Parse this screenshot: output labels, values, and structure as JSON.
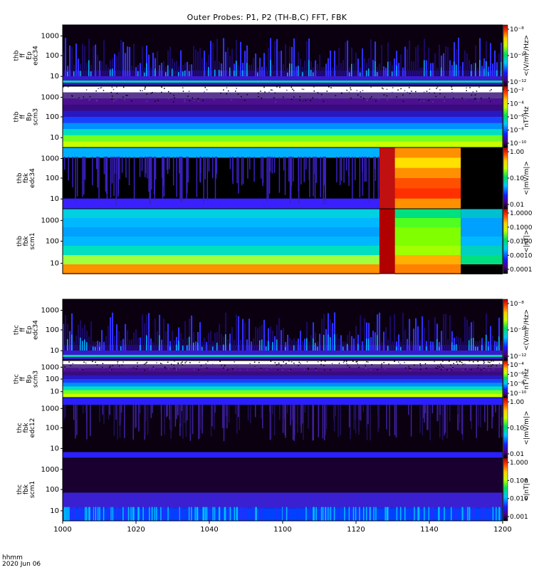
{
  "title": "Outer Probes: P1, P2 (TH-B,C) FFT, FBK",
  "footer": {
    "format": "hhmm",
    "date": "2020 Jun 06"
  },
  "chart_data": {
    "type": "heatmap",
    "x_axis": {
      "ticks": [
        "1000",
        "1020",
        "1040",
        "1100",
        "1120",
        "1140",
        "1200"
      ],
      "range": [
        "10:00",
        "12:00"
      ]
    },
    "panels": [
      {
        "id": "thb-ff-ep-edc34",
        "label": [
          "thb",
          "ff",
          "Ep",
          "edc34"
        ],
        "y_ticks": [
          "1000",
          "100",
          "10"
        ],
        "y_scale": "log",
        "cbar_unit": "<(V/m)²/Hz>",
        "cbar_ticks": [
          "10⁻⁸",
          "10⁻¹⁰",
          "10⁻¹²"
        ],
        "cbar_range": [
          "1e-13",
          "1e-7"
        ],
        "style": "spiky"
      },
      {
        "id": "thb-ff-bp-scm3",
        "label": [
          "thb",
          "ff",
          "Bp",
          "scm3"
        ],
        "y_ticks": [
          "1000",
          "100",
          "10"
        ],
        "y_scale": "log",
        "cbar_unit": "nT²/Hz",
        "cbar_ticks": [
          "10⁻²",
          "10⁻⁴",
          "10⁻⁶",
          "10⁻⁸",
          "10⁻¹⁰"
        ],
        "cbar_range": [
          "1e-10",
          "1e-2"
        ],
        "style": "bands"
      },
      {
        "id": "thb-fbk-edc34",
        "label": [
          "thb",
          "fbk",
          "edc34"
        ],
        "y_ticks": [
          "1000",
          "100",
          "10"
        ],
        "y_scale": "log",
        "cbar_unit": "<|mV/m|>",
        "cbar_ticks": [
          "1.00",
          "0.10",
          "0.01"
        ],
        "cbar_range": [
          "0.005",
          "2"
        ],
        "style": "fbk-e"
      },
      {
        "id": "thb-fbk-scm1",
        "label": [
          "thb",
          "fbk",
          "scm1"
        ],
        "y_ticks": [
          "1000",
          "100",
          "10"
        ],
        "y_scale": "log",
        "cbar_unit": "<|nT|>",
        "cbar_ticks": [
          "1.0000",
          "0.1000",
          "0.0100",
          "0.0010",
          "0.0001"
        ],
        "cbar_range": [
          "0.00005",
          "2"
        ],
        "style": "fbk-b"
      },
      {
        "id": "thc-ff-ep-edc34",
        "label": [
          "thc",
          "ff",
          "Ep",
          "edc34"
        ],
        "y_ticks": [
          "1000",
          "100",
          "10"
        ],
        "y_scale": "log",
        "cbar_unit": "<(V/m)²/Hz>",
        "cbar_ticks": [
          "10⁻⁸",
          "10⁻¹⁰",
          "10⁻¹²"
        ],
        "cbar_range": [
          "1e-13",
          "1e-7"
        ],
        "style": "spiky"
      },
      {
        "id": "thc-ff-bp-scm3",
        "label": [
          "thc",
          "ff",
          "Bp",
          "scm3"
        ],
        "y_ticks": [
          "1000",
          "100",
          "10"
        ],
        "y_scale": "log",
        "cbar_unit": "nT²/Hz",
        "cbar_ticks": [
          "10⁻⁴",
          "10⁻⁶",
          "10⁻⁸",
          "10⁻¹⁰"
        ],
        "cbar_range": [
          "1e-11",
          "1e-3"
        ],
        "style": "bands"
      },
      {
        "id": "thc-fbk-edc12",
        "label": [
          "thc",
          "fbk",
          "edc12"
        ],
        "y_ticks": [
          "1000",
          "100",
          "10"
        ],
        "y_scale": "log",
        "cbar_unit": "<|mV/m|>",
        "cbar_ticks": [
          "1.00",
          "0.10",
          "0.01"
        ],
        "cbar_range": [
          "0.005",
          "2"
        ],
        "style": "fbk-dark"
      },
      {
        "id": "thc-fbk-scm1",
        "label": [
          "thc",
          "fbk",
          "scm1"
        ],
        "y_ticks": [
          "1000",
          "100",
          "10"
        ],
        "y_scale": "log",
        "cbar_unit": "<|nT|>",
        "cbar_ticks": [
          "1.000",
          "0.100",
          "0.010",
          "0.001"
        ],
        "cbar_range": [
          "0.0005",
          "2"
        ],
        "style": "fbk-dark2"
      }
    ]
  }
}
